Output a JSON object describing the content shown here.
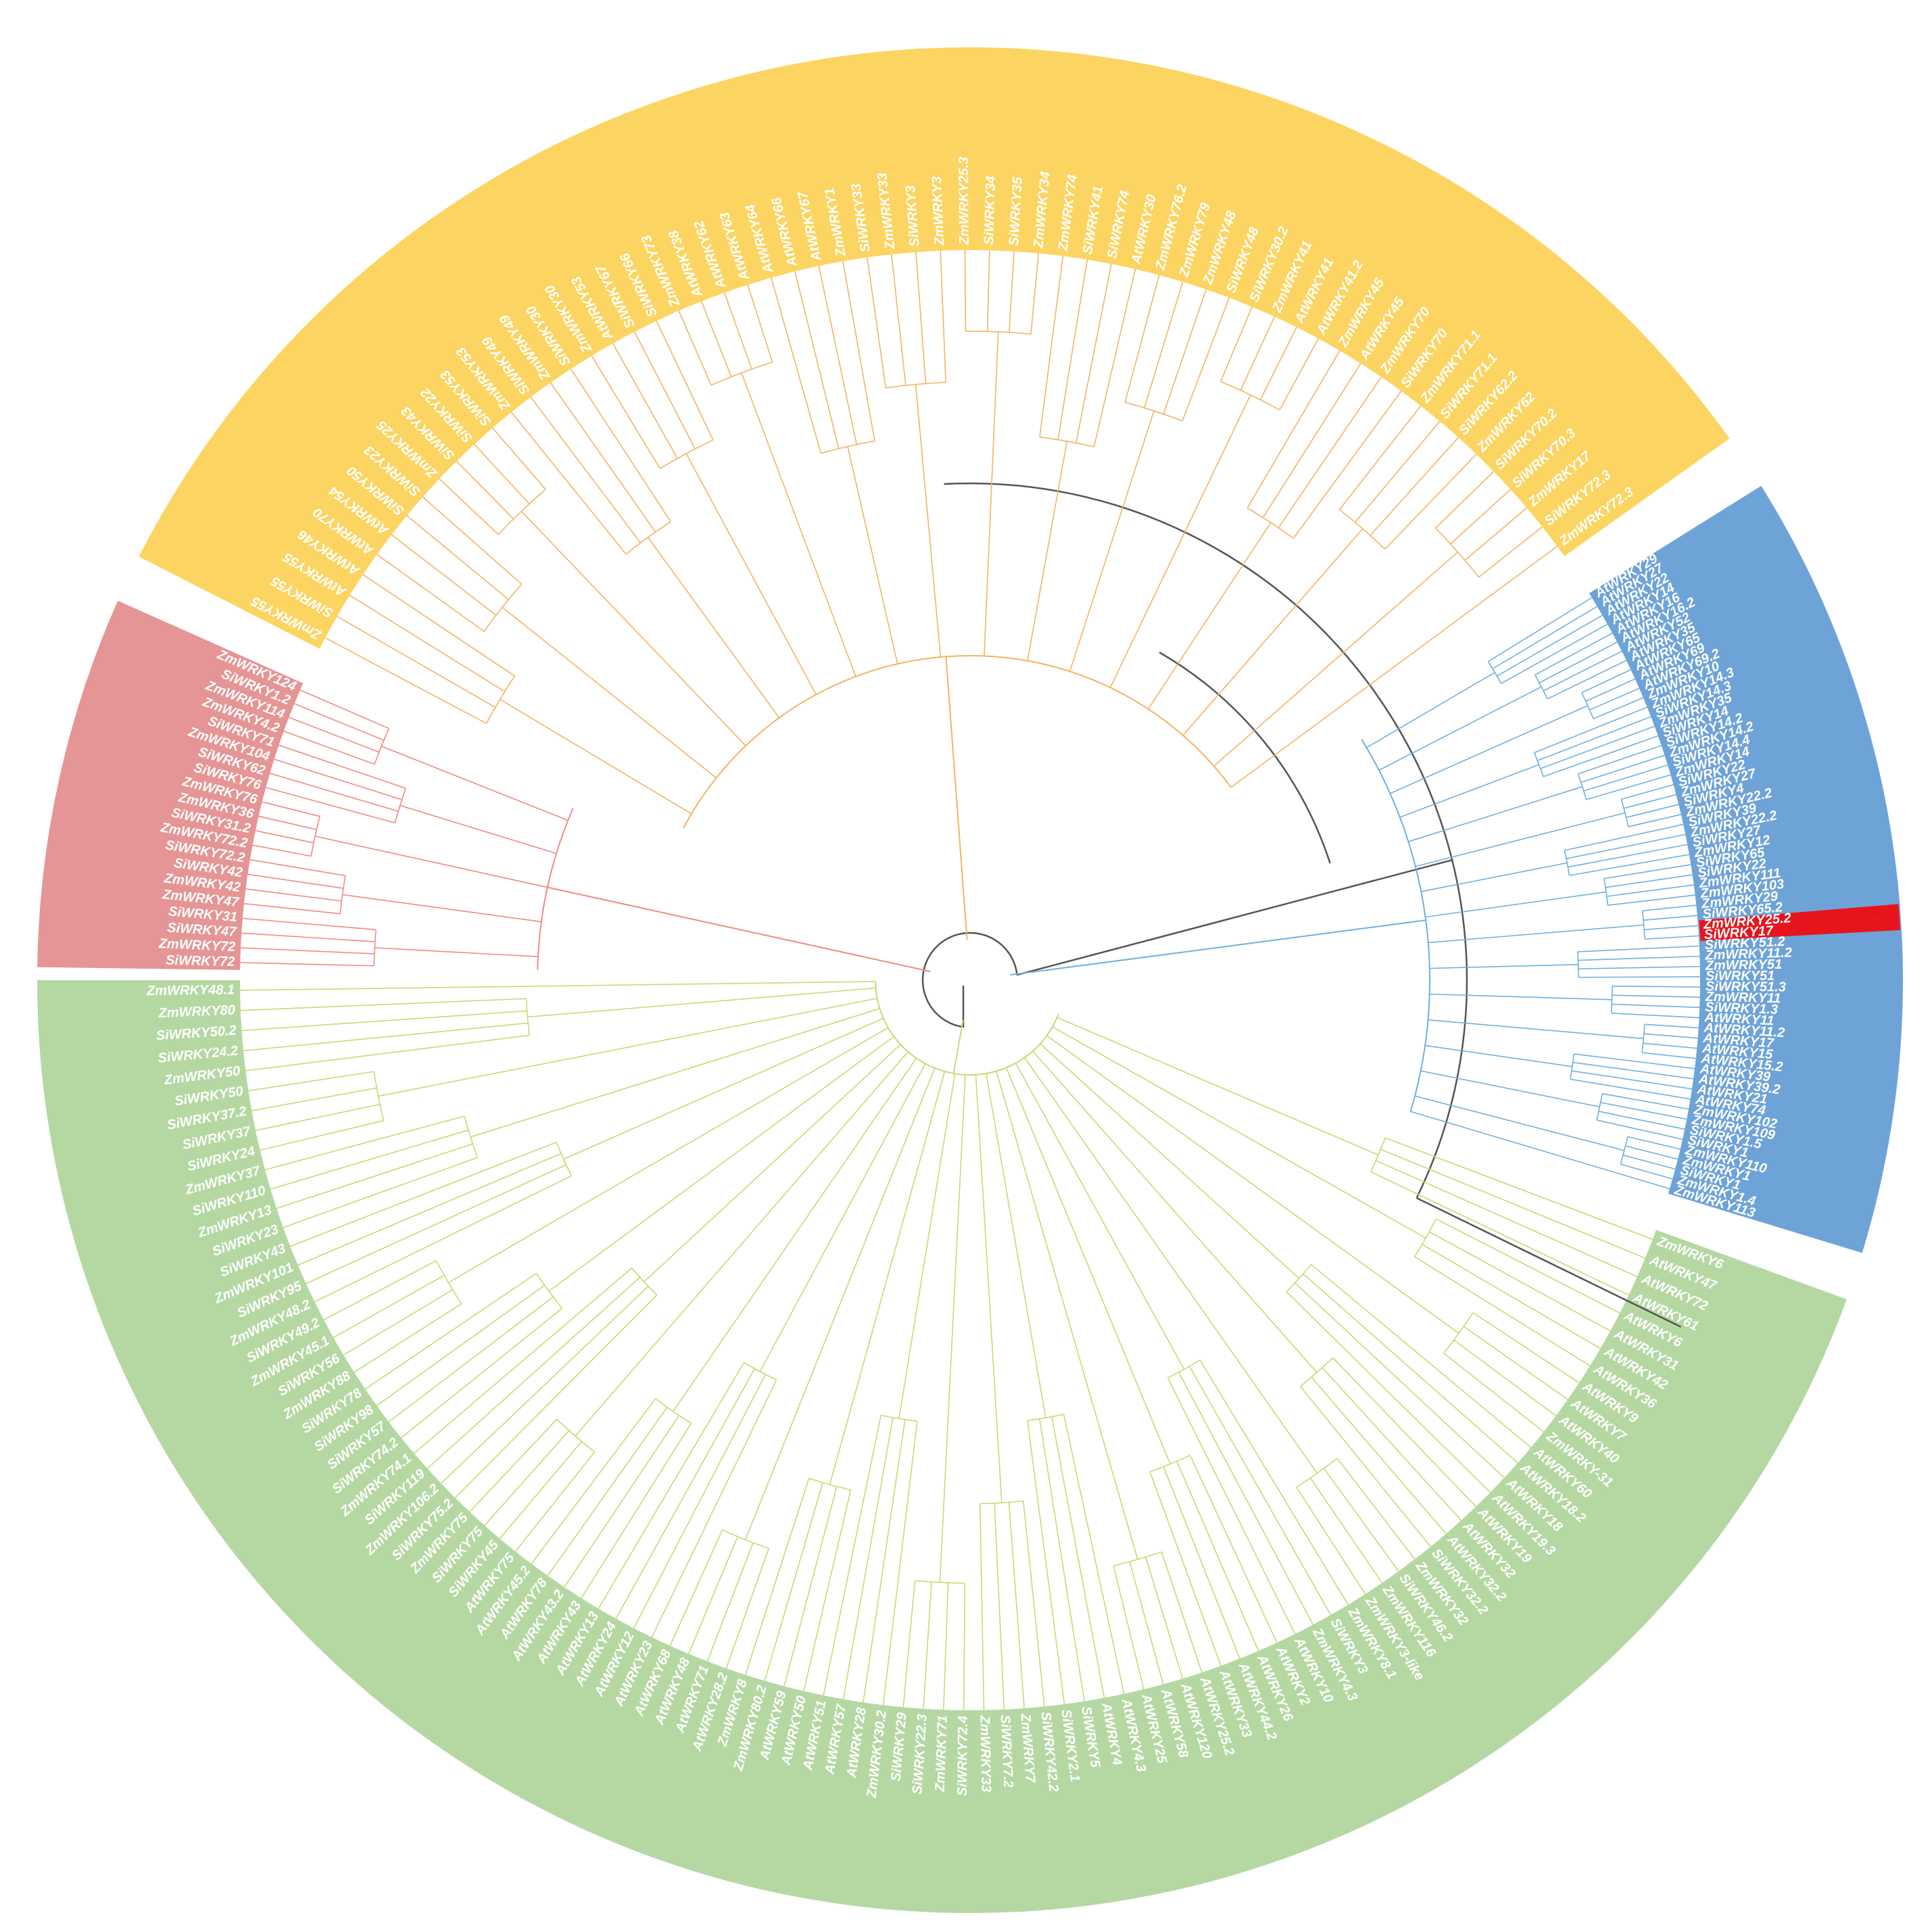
{
  "tree": {
    "root_color": "#555555",
    "highlight_color": "#e8141c",
    "highlight_labels": [
      "ZmWRKY25.2",
      "SiWRKY17"
    ],
    "clades": [
      {
        "id": "red",
        "band_color": "#e59595",
        "branch_color": "#f08a84",
        "leaves": [
          "SiWRKY72",
          "ZmWRKY72",
          "SiWRKY47",
          "SiWRKY31",
          "ZmWRKY47",
          "ZmWRKY42",
          "SiWRKY42",
          "SiWRKY72.2",
          "ZmWRKY72.2",
          "SiWRKY31.2",
          "ZmWRKY36",
          "ZmWRKY76",
          "SiWRKY76",
          "SiWRKY62",
          "ZmWRKY104",
          "SiWRKY71",
          "ZmWRKY4.2",
          "ZmWRKY114",
          "SiWRKY1.2",
          "ZmWRKY124"
        ]
      },
      {
        "id": "yellow",
        "band_color": "#fcd462",
        "branch_color": "#f2b463",
        "leaves": [
          "ZmWRKY55",
          "SiWRKY55",
          "AtWRKY55",
          "AtWRKY46",
          "AtWRKY70",
          "AtWRKY54",
          "SiWRKY50",
          "SiWRKY23",
          "ZmWRKY25",
          "SiWRKY43",
          "SiWRKY22",
          "SiWRKY53",
          "ZmWRKY53",
          "SiWRKY49",
          "ZmWRKY49",
          "SiWRKY30",
          "ZmWRKY30",
          "AtWRKY53",
          "SiWRKY67",
          "SiWRKY66",
          "ZmWRKY73",
          "AtWRKY38",
          "AtWRKY62",
          "AtWRKY63",
          "AtWRKY64",
          "AtWRKY66",
          "AtWRKY67",
          "ZmWRKY1",
          "SiWRKY33",
          "ZmWRKY33",
          "SiWRKY3",
          "ZmWRKY3",
          "ZmWRKY25.3",
          "SiWRKY34",
          "SiWRKY35",
          "ZmWRKY34",
          "ZmWRKY74",
          "SiWRKY41",
          "SiWRKY74",
          "AtWRKY30",
          "ZmWRKY76.2",
          "ZmWRKY79",
          "ZmWRKY48",
          "SiWRKY48",
          "SiWRKY30.2",
          "ZmWRKY41",
          "AtWRKY41",
          "AtWRKY41.2",
          "ZmWRKY45",
          "AtWRKY45",
          "ZmWRKY70",
          "SiWRKY70",
          "ZmWRKY71.1",
          "SiWRKY71.1",
          "SiWRKY62.2",
          "ZmWRKY62",
          "SiWRKY70.2",
          "SiWRKY70.3",
          "ZmWRKY17",
          "SiWRKY72.3",
          "ZmWRKY72.3"
        ]
      },
      {
        "id": "blue",
        "band_color": "#6ea3d8",
        "branch_color": "#6fb0e0",
        "leaves": [
          "AtWRKY29",
          "AtWRKY27",
          "AtWRKY22",
          "AtWRKY14",
          "AtWRKY16",
          "AtWRKY16.2",
          "AtWRKY52",
          "AtWRKY35",
          "AtWRKY65",
          "AtWRKY69",
          "AtWRKY69.2",
          "ZmWRKY10",
          "ZmWRKY14.3",
          "SiWRKY14.3",
          "ZmWRKY35",
          "SiWRKY14",
          "SiWRKY14.2",
          "ZmWRKY14.2",
          "SiWRKY14.4",
          "ZmWRKY14",
          "SiWRKY22",
          "ZmWRKY27",
          "SiWRKY4",
          "ZmWRKY22.2",
          "SiWRKY39",
          "ZmWRKY22.2",
          "SiWRKY27",
          "ZmWRKY12",
          "SiWRKY65",
          "SiWRKY22",
          "ZmWRKY111",
          "ZmWRKY103",
          "ZmWRKY29",
          "SiWRKY65.2",
          "ZmWRKY25.2",
          "SiWRKY17",
          "SiWRKY51.2",
          "ZmWRKY11.2",
          "ZmWRKY51",
          "SiWRKY51",
          "SiWRKY51.3",
          "ZmWRKY11",
          "SiWRKY1.3",
          "AtWRKY11",
          "AtWRKY11.2",
          "AtWRKY17",
          "AtWRKY15",
          "AtWRKY15.2",
          "AtWRKY39",
          "AtWRKY39.2",
          "AtWRKY21",
          "AtWRKY74",
          "ZmWRKY102",
          "ZmWRKY109",
          "SiWRKY1.5",
          "SiWRKY1",
          "ZmWRKY110",
          "ZmWRKY1",
          "SiWRKY1",
          "ZmWRKY1.4",
          "ZmWRKY113"
        ]
      },
      {
        "id": "green",
        "band_color": "#b5d8a3",
        "branch_color": "#c2dc72",
        "leaves": [
          "ZmWRKY6",
          "AtWRKY47",
          "AtWRKY72",
          "AtWRKY61",
          "AtWRKY6",
          "AtWRKY31",
          "AtWRKY42",
          "AtWRKY36",
          "AtWRKY9",
          "AtWRKY7",
          "AtWRKY40",
          "ZmWRKY-31",
          "AtWRKY60",
          "AtWRKY18.2",
          "AtWRKY18",
          "AtWRKY19.3",
          "AtWRKY19",
          "AtWRKY32",
          "AtWRKY32.2",
          "SiWRKY32.2",
          "ZmWRKY32",
          "SiWRKY46.2",
          "ZmWRKY116",
          "ZmWRKY3-like",
          "ZmWRKY8.1",
          "SiWRKY3",
          "ZmWRKY4.3",
          "AtWRKY10",
          "AtWRKY2",
          "AtWRKY26",
          "AtWRKY44.2",
          "AtWRKY33",
          "AtWRKY25.2",
          "AtWRKY120",
          "AtWRKY58",
          "AtWRKY25",
          "AtWRKY4.3",
          "AtWRKY4",
          "SiWRKY5",
          "SiWRKY2.1",
          "SiWRKY42.2",
          "ZmWRKY7",
          "SiWRKY7.2",
          "ZmWRKY33",
          "SiWRKY72.4",
          "ZmWRKY71",
          "SiWRKY22.3",
          "SiWRKY29",
          "ZmWRKY30.2",
          "AtWRKY28",
          "AtWRKY57",
          "AtWRKY51",
          "AtWRKY50",
          "AtWRKY59",
          "ZmWRKY80.2",
          "ZmWRKY8",
          "AtWRKY28.2",
          "AtWRKY71",
          "AtWRKY48",
          "AtWRKY68",
          "AtWRKY23",
          "AtWRKY12",
          "AtWRKY24",
          "AtWRKY13",
          "AtWRKY43",
          "AtWRKY43.2",
          "AtWRKY78",
          "AtWRKY45.2",
          "AtWRKY75",
          "SiWRKY45",
          "SiWRKY75",
          "ZmWRKY75",
          "SiWRKY75.2",
          "ZmWRKY106.2",
          "SiWRKY119",
          "ZmWRKY74.1",
          "SiWRKY74.2",
          "SiWRKY57",
          "SiWRKY98",
          "SiWRKY78",
          "ZmWRKY88",
          "SiWRKY56",
          "ZmWRKY45.1",
          "SiWRKY49.2",
          "ZmWRKY48.2",
          "SiWRKY95",
          "ZmWRKY101",
          "SiWRKY43",
          "SiWRKY23",
          "ZmWRKY13",
          "SiWRKY110",
          "ZmWRKY37",
          "SiWRKY24",
          "SiWRKY37",
          "SiWRKY37.2",
          "SiWRKY50",
          "ZmWRKY50",
          "SiWRKY24.2",
          "SiWRKY50.2",
          "ZmWRKY80",
          "ZmWRKY48.1"
        ]
      }
    ]
  }
}
